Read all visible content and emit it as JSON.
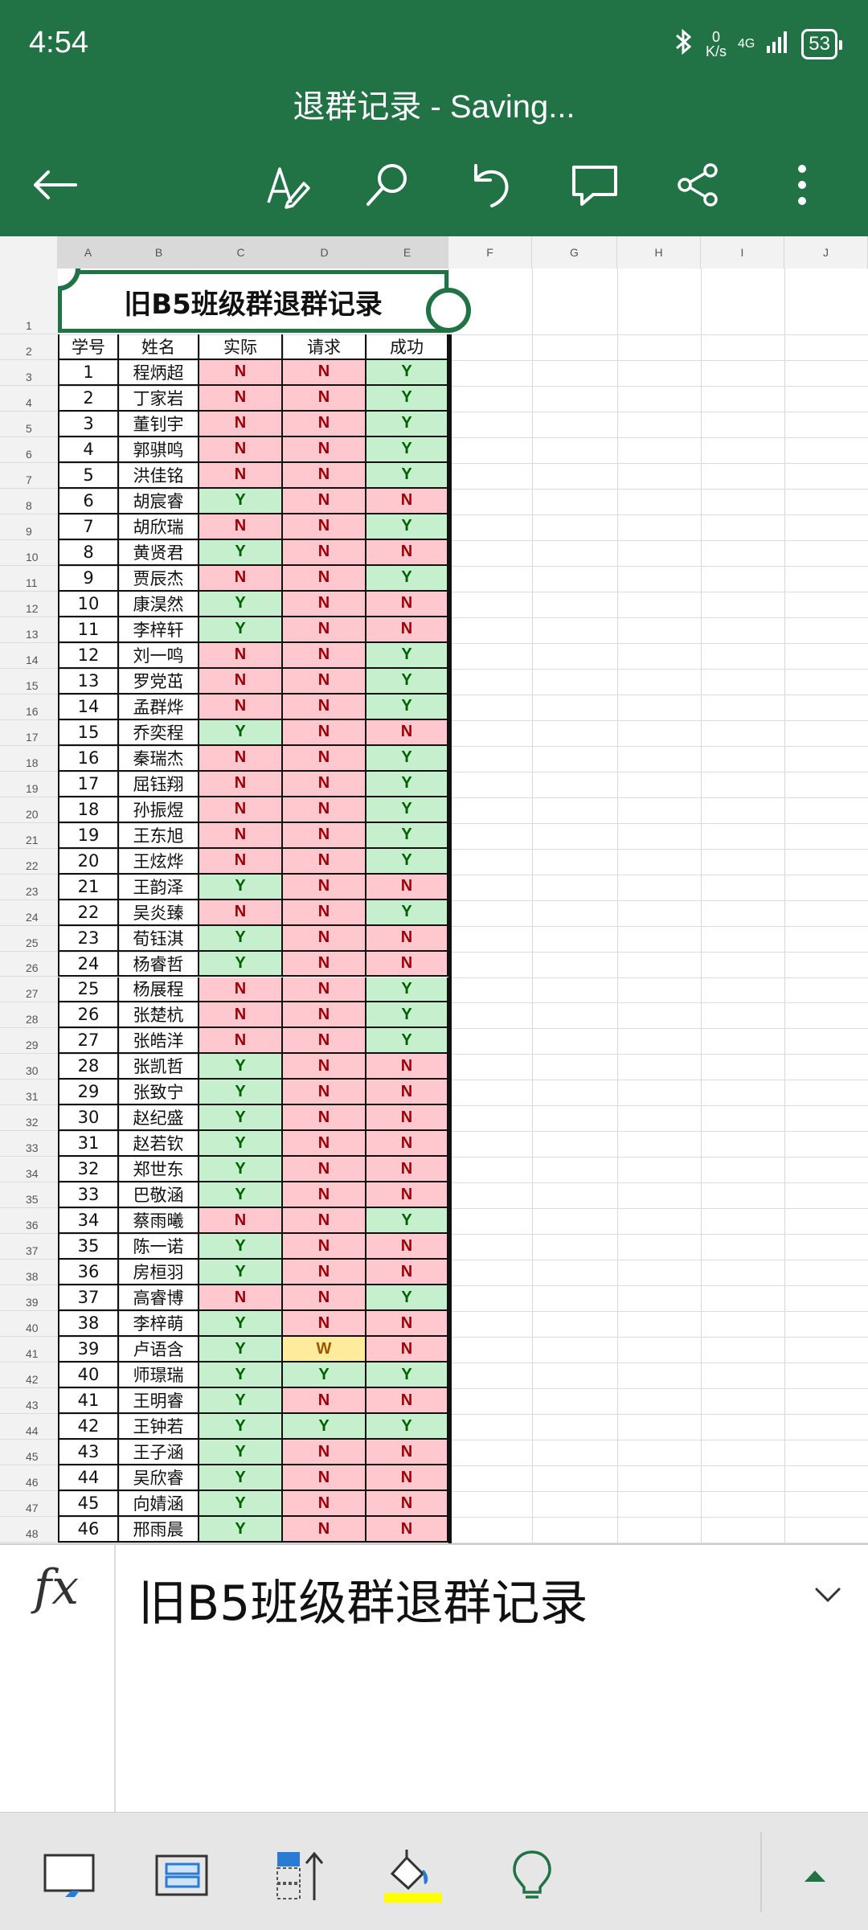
{
  "status_bar": {
    "time": "4:54",
    "net_speed_value": "0",
    "net_speed_unit": "K/s",
    "network_label": "4G",
    "battery": "53"
  },
  "app_bar": {
    "title": "退群记录 - Saving..."
  },
  "icons": {
    "back": "back-arrow-icon",
    "edit": "pen-edit-icon",
    "search": "search-icon",
    "undo": "undo-icon",
    "comment": "comment-icon",
    "share": "share-icon",
    "more": "more-vertical-icon"
  },
  "colors": {
    "brand_green": "#217346",
    "yes_fill": "#c6efce",
    "yes_text": "#006100",
    "no_fill": "#ffc7ce",
    "no_text": "#9c0006",
    "wait_fill": "#ffeb9c",
    "wait_text": "#9c5700"
  },
  "sheet": {
    "column_letters": [
      "A",
      "B",
      "C",
      "D",
      "E",
      "F",
      "G",
      "H",
      "I",
      "J"
    ],
    "title": "旧B5班级群退群记录",
    "headers": [
      "学号",
      "姓名",
      "实际",
      "请求",
      "成功"
    ],
    "rows": [
      [
        "1",
        "程炳超",
        "N",
        "N",
        "Y"
      ],
      [
        "2",
        "丁家岩",
        "N",
        "N",
        "Y"
      ],
      [
        "3",
        "董钊宇",
        "N",
        "N",
        "Y"
      ],
      [
        "4",
        "郭骐鸣",
        "N",
        "N",
        "Y"
      ],
      [
        "5",
        "洪佳铭",
        "N",
        "N",
        "Y"
      ],
      [
        "6",
        "胡宸睿",
        "Y",
        "N",
        "N"
      ],
      [
        "7",
        "胡欣瑞",
        "N",
        "N",
        "Y"
      ],
      [
        "8",
        "黄贤君",
        "Y",
        "N",
        "N"
      ],
      [
        "9",
        "贾辰杰",
        "N",
        "N",
        "Y"
      ],
      [
        "10",
        "康淏然",
        "Y",
        "N",
        "N"
      ],
      [
        "11",
        "李梓轩",
        "Y",
        "N",
        "N"
      ],
      [
        "12",
        "刘一鸣",
        "N",
        "N",
        "Y"
      ],
      [
        "13",
        "罗党茁",
        "N",
        "N",
        "Y"
      ],
      [
        "14",
        "孟群烨",
        "N",
        "N",
        "Y"
      ],
      [
        "15",
        "乔奕程",
        "Y",
        "N",
        "N"
      ],
      [
        "16",
        "秦瑞杰",
        "N",
        "N",
        "Y"
      ],
      [
        "17",
        "屈钰翔",
        "N",
        "N",
        "Y"
      ],
      [
        "18",
        "孙振煜",
        "N",
        "N",
        "Y"
      ],
      [
        "19",
        "王东旭",
        "N",
        "N",
        "Y"
      ],
      [
        "20",
        "王炫烨",
        "N",
        "N",
        "Y"
      ],
      [
        "21",
        "王韵泽",
        "Y",
        "N",
        "N"
      ],
      [
        "22",
        "吴炎臻",
        "N",
        "N",
        "Y"
      ],
      [
        "23",
        "荀钰淇",
        "Y",
        "N",
        "N"
      ],
      [
        "24",
        "杨睿哲",
        "Y",
        "N",
        "N"
      ],
      [
        "25",
        "杨展程",
        "N",
        "N",
        "Y"
      ],
      [
        "26",
        "张楚杭",
        "N",
        "N",
        "Y"
      ],
      [
        "27",
        "张皓洋",
        "N",
        "N",
        "Y"
      ],
      [
        "28",
        "张凯哲",
        "Y",
        "N",
        "N"
      ],
      [
        "29",
        "张致宁",
        "Y",
        "N",
        "N"
      ],
      [
        "30",
        "赵纪盛",
        "Y",
        "N",
        "N"
      ],
      [
        "31",
        "赵若钦",
        "Y",
        "N",
        "N"
      ],
      [
        "32",
        "郑世东",
        "Y",
        "N",
        "N"
      ],
      [
        "33",
        "巴敬涵",
        "Y",
        "N",
        "N"
      ],
      [
        "34",
        "蔡雨曦",
        "N",
        "N",
        "Y"
      ],
      [
        "35",
        "陈一诺",
        "Y",
        "N",
        "N"
      ],
      [
        "36",
        "房桓羽",
        "Y",
        "N",
        "N"
      ],
      [
        "37",
        "高睿博",
        "N",
        "N",
        "Y"
      ],
      [
        "38",
        "李梓萌",
        "Y",
        "N",
        "N"
      ],
      [
        "39",
        "卢语含",
        "Y",
        "W",
        "N"
      ],
      [
        "40",
        "师璟瑞",
        "Y",
        "Y",
        "Y"
      ],
      [
        "41",
        "王明睿",
        "Y",
        "N",
        "N"
      ],
      [
        "42",
        "王钟若",
        "Y",
        "Y",
        "Y"
      ],
      [
        "43",
        "王子涵",
        "Y",
        "N",
        "N"
      ],
      [
        "44",
        "吴欣睿",
        "Y",
        "N",
        "N"
      ],
      [
        "45",
        "向婧涵",
        "Y",
        "N",
        "N"
      ],
      [
        "46",
        "邢雨晨",
        "Y",
        "N",
        "N"
      ]
    ]
  },
  "formula_bar": {
    "fx_label": "fx",
    "content": "旧B5班级群退群记录"
  },
  "bottom_toolbar": {
    "items": [
      "sheet-view-icon",
      "table-style-icon",
      "sort-icon",
      "fill-color-icon",
      "tell-me-lightbulb-icon",
      "expand-up-icon"
    ],
    "fill_color": "#ffff00"
  }
}
